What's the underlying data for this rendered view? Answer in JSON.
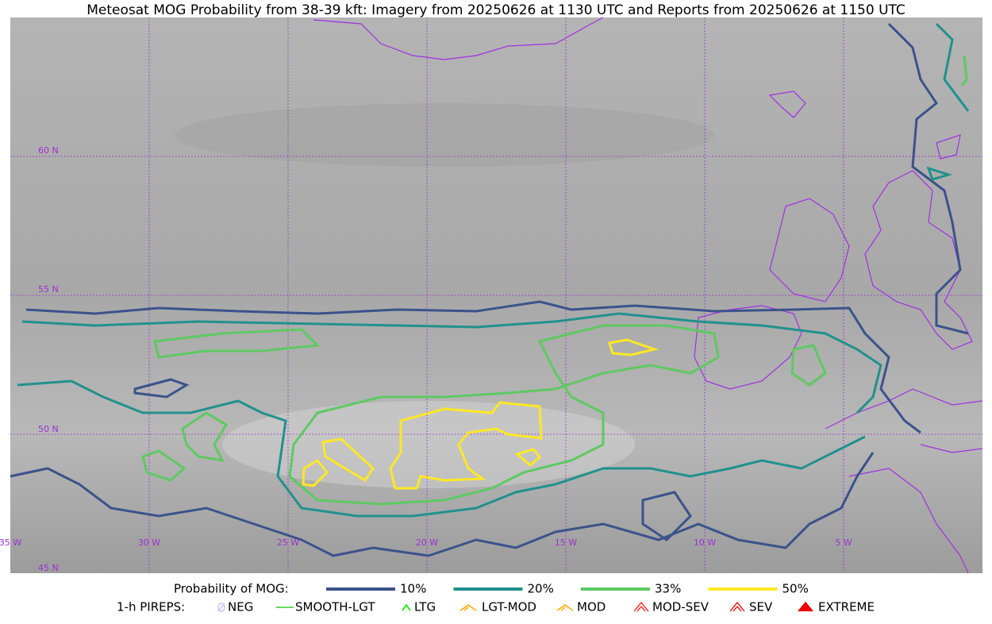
{
  "title": "Meteosat MOG Probability from 38-39 kft: Imagery from 20250626 at 1130 UTC and Reports from 20250626 at 1150 UTC",
  "lat_labels": [
    "60 N",
    "55 N",
    "50 N",
    "45 N"
  ],
  "lon_labels": [
    "35 W",
    "30 W",
    "25 W",
    "20 W",
    "15 W",
    "10 W",
    "5 W"
  ],
  "legend": {
    "probability": {
      "label": "Probability of MOG:",
      "items": [
        {
          "label": "10%",
          "color": "#3b528b"
        },
        {
          "label": "20%",
          "color": "#21918c"
        },
        {
          "label": "33%",
          "color": "#5ec962"
        },
        {
          "label": "50%",
          "color": "#fde725"
        }
      ]
    },
    "pireps": {
      "label": "1-h PIREPS:",
      "items": [
        {
          "label": "NEG",
          "color": "#c8c8ff"
        },
        {
          "label": "SMOOTH-LGT",
          "color": "#33cc33"
        },
        {
          "label": "LTG",
          "color": "#00ee00"
        },
        {
          "label": "LGT-MOD",
          "color": "#ffa500"
        },
        {
          "label": "MOD",
          "color": "#ffb000"
        },
        {
          "label": "MOD-SEV",
          "color": "#ff4040"
        },
        {
          "label": "SEV",
          "color": "#e03030"
        },
        {
          "label": "EXTREME",
          "color": "#ee0000"
        }
      ]
    }
  }
}
